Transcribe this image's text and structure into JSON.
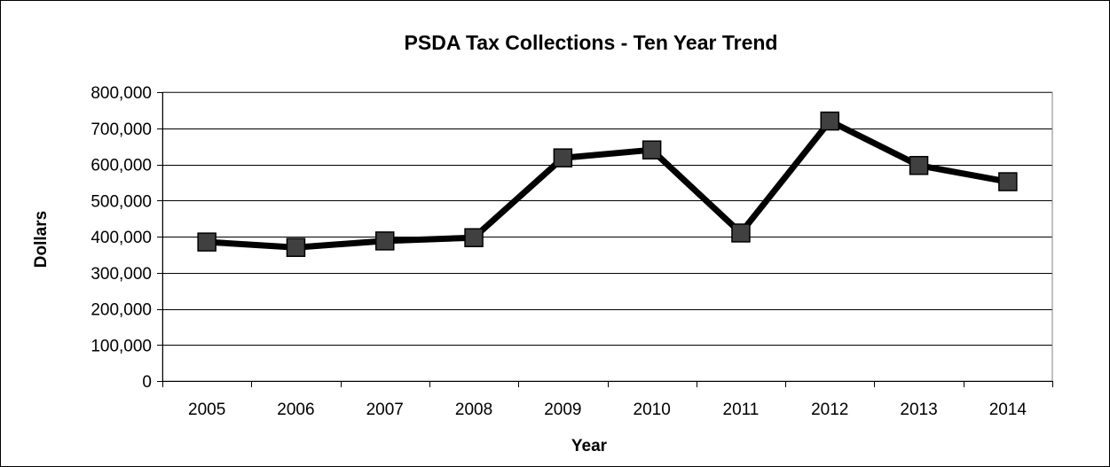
{
  "chart_data": {
    "type": "line",
    "title": "PSDA Tax Collections - Ten Year Trend",
    "xlabel": "Year",
    "ylabel": "Dollars",
    "categories": [
      "2005",
      "2006",
      "2007",
      "2008",
      "2009",
      "2010",
      "2011",
      "2012",
      "2013",
      "2014"
    ],
    "series": [
      {
        "values": [
          385000,
          370000,
          388000,
          397000,
          618000,
          640000,
          410000,
          720000,
          597000,
          552000
        ],
        "color": "#000000",
        "marker": "square",
        "marker_color": "#404040"
      }
    ],
    "ylim": [
      0,
      800000
    ],
    "y_ticks": [
      0,
      100000,
      200000,
      300000,
      400000,
      500000,
      600000,
      700000,
      800000
    ],
    "y_tick_labels": [
      "0",
      "100,000",
      "200,000",
      "300,000",
      "400,000",
      "500,000",
      "600,000",
      "700,000",
      "800,000"
    ],
    "grid": "horizontal",
    "legend": "none"
  }
}
